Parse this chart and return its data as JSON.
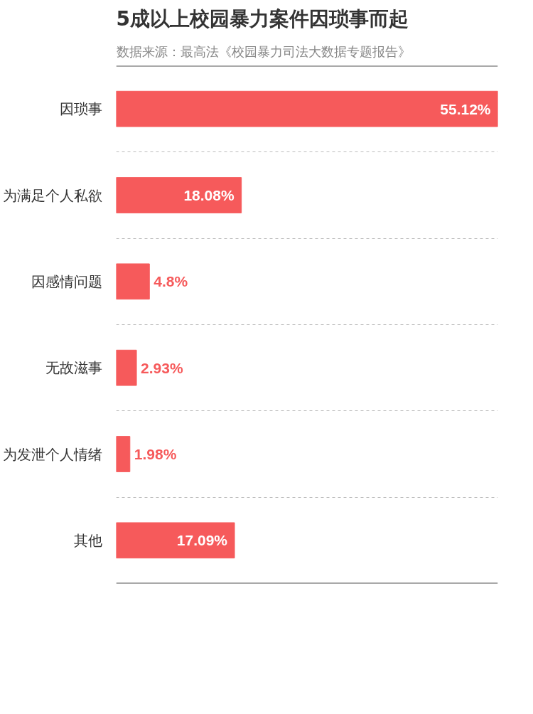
{
  "chart_data": {
    "type": "bar",
    "orientation": "horizontal",
    "title": "5成以上校园暴力案件因琐事而起",
    "subtitle": "数据来源：最高法《校园暴力司法大数据专题报告》",
    "categories": [
      "因琐事",
      "为满足个人私欲",
      "因感情问题",
      "无故滋事",
      "为发泄个人情绪",
      "其他"
    ],
    "values": [
      55.12,
      18.08,
      4.8,
      2.93,
      1.98,
      17.09
    ],
    "value_labels": [
      "55.12%",
      "18.08%",
      "4.8%",
      "2.93%",
      "1.98%",
      "17.09%"
    ],
    "color": "#f65a5b",
    "grid": "y"
  }
}
